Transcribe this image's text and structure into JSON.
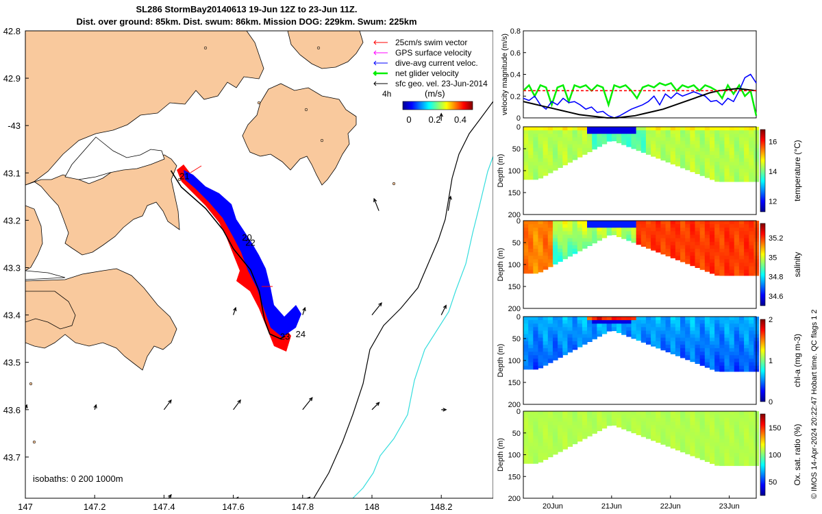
{
  "header": {
    "title_line1": "SL286 StormBay20140613 19-Jun 12Z to 23-Jun 11Z.",
    "title_line2": "Dist. over ground: 85km. Dist. swum: 86km. Mission DOG: 229km. Swum: 225km"
  },
  "credit": "© IMOS 14-Apr-2024 20:22:47 Hobart time. QC flags 1  2",
  "colors": {
    "land": "#f9c99d",
    "water": "#ffffff",
    "track_red": "#ff0000",
    "track_blue": "#0000ff",
    "geo_vel": "#000000",
    "isobath_200": "#000000",
    "isobath_1000": "#33dddd"
  },
  "chart_data": [
    {
      "type": "map",
      "lon_ticks": [
        "147",
        "147.2",
        "147.4",
        "147.6",
        "147.8",
        "148",
        "148.2"
      ],
      "lat_ticks": [
        "42.8",
        "42.9",
        "-43",
        "43.1",
        "43.2",
        "43.3",
        "43.4",
        "43.5",
        "43.6",
        "43.7"
      ],
      "legend": [
        {
          "label": "25cm/s swim vector",
          "color": "#ff0000"
        },
        {
          "label": "GPS surface velocity",
          "color": "#ff00ff"
        },
        {
          "label": "dive-avg current veloc.",
          "color": "#0000ff"
        },
        {
          "label": "net glider velocity",
          "color": "#00ee00"
        },
        {
          "label": "sfc geo. vel. 23-Jun-2014",
          "color": "#000000"
        }
      ],
      "legend_corner_label": "4h",
      "colorbar": {
        "unit": "(m/s)",
        "ticks": [
          "0",
          "0.2",
          "0.4"
        ]
      },
      "day_labels": [
        {
          "label": "21",
          "lon": 147.445,
          "lat": -43.113
        },
        {
          "label": "22",
          "lon": 147.635,
          "lat": -43.254
        },
        {
          "label": "20",
          "lon": 147.625,
          "lat": -43.243
        },
        {
          "label": "24",
          "lon": 147.78,
          "lat": -43.447
        },
        {
          "label": "23",
          "lon": 147.735,
          "lat": -43.452
        }
      ],
      "isobaths_label": "isobaths: 0   200  1000m",
      "glider_track": [
        [
          147.42,
          -43.095
        ],
        [
          147.45,
          -43.13
        ],
        [
          147.52,
          -43.175
        ],
        [
          147.57,
          -43.22
        ],
        [
          147.6,
          -43.26
        ],
        [
          147.65,
          -43.305
        ],
        [
          147.675,
          -43.35
        ],
        [
          147.69,
          -43.41
        ],
        [
          147.705,
          -43.44
        ],
        [
          147.735,
          -43.45
        ],
        [
          147.75,
          -43.445
        ]
      ],
      "geo_vectors": [
        {
          "lon": 148.02,
          "lat": -43.18,
          "u": -0.1,
          "v": 0.25
        },
        {
          "lon": 148.22,
          "lat": -43.18,
          "u": 0.05,
          "v": 0.3
        },
        {
          "lon": 147.8,
          "lat": -43.4,
          "u": 0.05,
          "v": 0.15
        },
        {
          "lon": 148.0,
          "lat": -43.4,
          "u": 0.2,
          "v": 0.25
        },
        {
          "lon": 148.2,
          "lat": -43.4,
          "u": 0.1,
          "v": 0.2
        },
        {
          "lon": 147.6,
          "lat": -43.4,
          "u": 0.05,
          "v": 0.15
        },
        {
          "lon": 147.0,
          "lat": -43.6,
          "u": 0.03,
          "v": 0.1
        },
        {
          "lon": 147.2,
          "lat": -43.6,
          "u": 0.03,
          "v": 0.1
        },
        {
          "lon": 147.4,
          "lat": -43.6,
          "u": 0.15,
          "v": 0.2
        },
        {
          "lon": 147.6,
          "lat": -43.6,
          "u": 0.15,
          "v": 0.2
        },
        {
          "lon": 147.8,
          "lat": -43.6,
          "u": 0.2,
          "v": 0.25
        },
        {
          "lon": 148.0,
          "lat": -43.6,
          "u": 0.15,
          "v": 0.15
        },
        {
          "lon": 148.2,
          "lat": -43.6,
          "u": 0.1,
          "v": 0.0
        },
        {
          "lon": 147.4,
          "lat": -43.8,
          "u": 0.15,
          "v": 0.2
        },
        {
          "lon": 147.6,
          "lat": -43.8,
          "u": 0.1,
          "v": 0.15
        },
        {
          "lon": 147.8,
          "lat": -43.8,
          "u": 0.15,
          "v": 0.15
        },
        {
          "lon": 147.0,
          "lat": -43.8,
          "u": 0.02,
          "v": 0.05
        },
        {
          "lon": 147.2,
          "lat": -43.8,
          "u": 0.02,
          "v": 0.05
        },
        {
          "lon": 148.2,
          "lat": -42.99,
          "u": 0.0,
          "v": 0.15
        }
      ]
    },
    {
      "type": "line",
      "ylabel": "velocity magnitude (m/s)",
      "ylim": [
        0,
        0.8
      ],
      "yticks": [
        "0",
        "0.2",
        "0.4",
        "0.6",
        "0.8"
      ],
      "xlim": [
        "19-Jun 12Z",
        "23-Jun 11Z"
      ],
      "series": [
        {
          "color": "#00ee00",
          "values": [
            0.25,
            0.3,
            0.2,
            0.3,
            0.28,
            0.12,
            0.28,
            0.3,
            0.15,
            0.3,
            0.28,
            0.3,
            0.25,
            0.3,
            0.28,
            0.12,
            0.3,
            0.28,
            0.3,
            0.25,
            0.18,
            0.28,
            0.3,
            0.28,
            0.32,
            0.3,
            0.32,
            0.25,
            0.3,
            0.28,
            0.3,
            0.25,
            0.3,
            0.28,
            0.25,
            0.18,
            0.3,
            0.22,
            0.3,
            0.2,
            0.25,
            0.02
          ]
        },
        {
          "color": "#0000ff",
          "values": [
            0.18,
            0.16,
            0.2,
            0.12,
            0.08,
            0.15,
            0.12,
            0.18,
            0.14,
            0.15,
            0.12,
            0.08,
            0.1,
            0.05,
            0.06,
            0.02,
            0.0,
            0.02,
            0.05,
            0.08,
            0.1,
            0.12,
            0.15,
            0.2,
            0.12,
            0.22,
            0.18,
            0.23,
            0.2,
            0.22,
            0.24,
            0.22,
            0.2,
            0.15,
            0.16,
            0.12,
            0.18,
            0.15,
            0.25,
            0.37,
            0.4,
            0.32
          ]
        },
        {
          "color": "#000000",
          "values": [
            0.15,
            0.13,
            0.11,
            0.09,
            0.07,
            0.05,
            0.03,
            0.02,
            0.01,
            0.0,
            0.0,
            0.01,
            0.02,
            0.04,
            0.06,
            0.08,
            0.11,
            0.14,
            0.17,
            0.2,
            0.23,
            0.25,
            0.26,
            0.27,
            0.26,
            0.25
          ]
        },
        {
          "color": "#ff0000",
          "dashed": true,
          "values": [
            0.25,
            0.25
          ]
        }
      ]
    },
    {
      "type": "heatmap",
      "ylabel": "Depth (m)",
      "clabel": "temperature (°C)",
      "ylim": [
        200,
        0
      ],
      "yticks": [
        "0",
        "50",
        "100",
        "150",
        "200"
      ],
      "cticks": [
        "12",
        "14",
        "16"
      ],
      "crange": [
        11.3,
        16.8
      ],
      "field": "temperature"
    },
    {
      "type": "heatmap",
      "ylabel": "Depth (m)",
      "clabel": "salinity",
      "ylim": [
        200,
        0
      ],
      "yticks": [
        "0",
        "50",
        "100",
        "150",
        "200"
      ],
      "cticks": [
        "34.6",
        "34.8",
        "35",
        "35.2"
      ],
      "crange": [
        34.5,
        35.35
      ],
      "field": "salinity"
    },
    {
      "type": "heatmap",
      "ylabel": "Depth (m)",
      "clabel": "chl-a (mg m-3)",
      "ylim": [
        200,
        0
      ],
      "yticks": [
        "0",
        "50",
        "100",
        "150",
        "200"
      ],
      "cticks": [
        "0",
        "1",
        "2"
      ],
      "crange": [
        0,
        2
      ],
      "field": "chla"
    },
    {
      "type": "heatmap",
      "ylabel": "Depth (m)",
      "clabel": "Ox. sat. ratio (%)",
      "ylim": [
        200,
        0
      ],
      "yticks": [
        "0",
        "50",
        "100",
        "150",
        "200"
      ],
      "cticks": [
        "50",
        "100",
        "150"
      ],
      "crange": [
        25,
        175
      ],
      "field": "oxygen",
      "xticks": [
        "20Jun",
        "21Jun",
        "22Jun",
        "23Jun"
      ]
    }
  ]
}
